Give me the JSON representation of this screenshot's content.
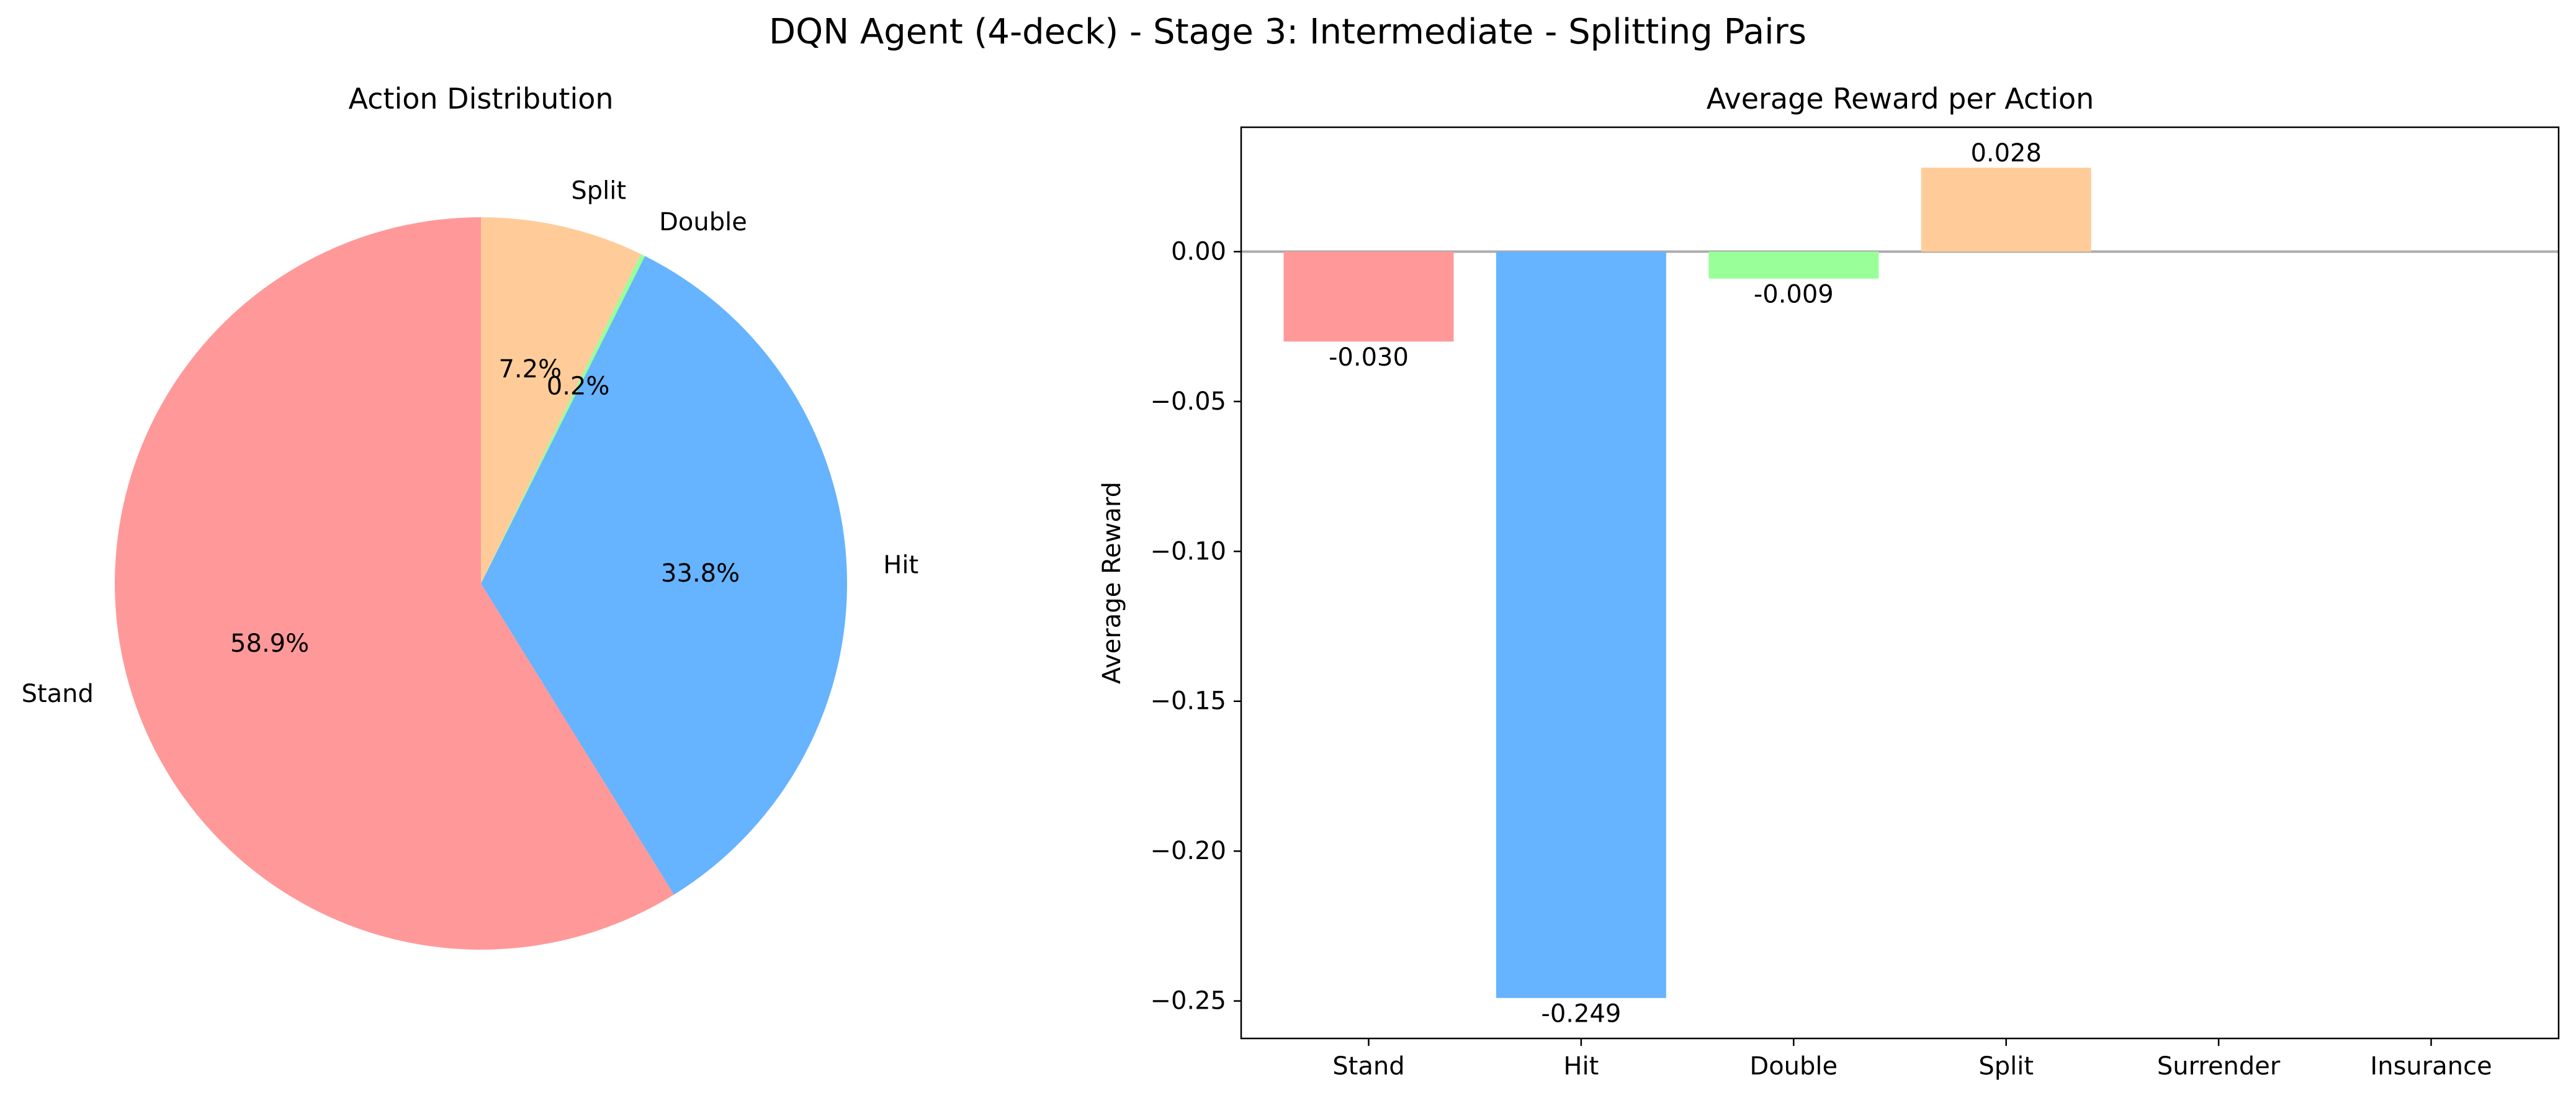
{
  "figure_title": "DQN Agent (4-deck) - Stage 3: Intermediate - Splitting Pairs",
  "chart_data": [
    {
      "type": "pie",
      "title": "Action Distribution",
      "start_angle_deg": 90,
      "direction": "counterclockwise",
      "slices": [
        {
          "label": "Stand",
          "value": 58.9,
          "pct_label": "58.9%",
          "color": "#ff9999"
        },
        {
          "label": "Hit",
          "value": 33.8,
          "pct_label": "33.8%",
          "color": "#66b3ff"
        },
        {
          "label": "Double",
          "value": 0.2,
          "pct_label": "0.2%",
          "color": "#99ff99"
        },
        {
          "label": "Split",
          "value": 7.2,
          "pct_label": "7.2%",
          "color": "#ffcc99"
        }
      ]
    },
    {
      "type": "bar",
      "title": "Average Reward per Action",
      "xlabel": "",
      "ylabel": "Average Reward",
      "categories": [
        "Stand",
        "Hit",
        "Double",
        "Split",
        "Surrender",
        "Insurance"
      ],
      "values": [
        -0.03,
        -0.249,
        -0.009,
        0.028,
        null,
        null
      ],
      "value_labels": [
        "-0.030",
        "-0.249",
        "-0.009",
        "0.028",
        "",
        ""
      ],
      "colors": [
        "#ff9999",
        "#66b3ff",
        "#99ff99",
        "#ffcc99",
        "#ff99cc",
        "#c2c2f0"
      ],
      "ylim": [
        -0.2625,
        0.0415
      ],
      "yticks": [
        0.0,
        -0.05,
        -0.1,
        -0.15,
        -0.2,
        -0.25
      ],
      "ytick_labels": [
        "0.00",
        "−0.05",
        "−0.10",
        "−0.15",
        "−0.20",
        "−0.25"
      ],
      "zero_line": true,
      "grid": false,
      "legend": "none"
    }
  ]
}
